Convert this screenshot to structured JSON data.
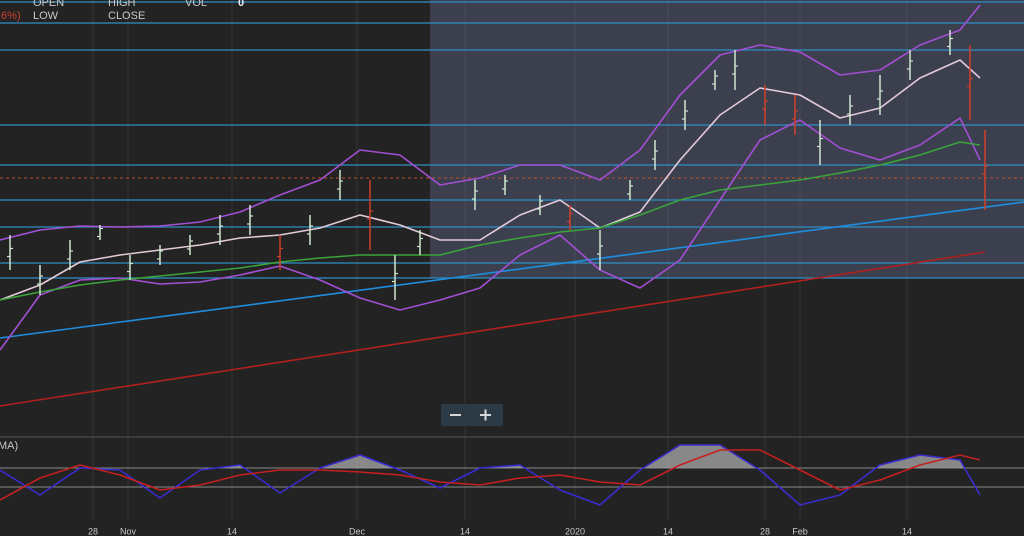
{
  "header": {
    "open": "OPEN",
    "high": "HIGH",
    "vol": "VOL",
    "vol_value": "0",
    "change": ".6%)",
    "low": "LOW",
    "close": "CLOSE"
  },
  "chart_data": [
    {
      "type": "line",
      "xlim": [
        0,
        1024
      ],
      "ylim": [
        0,
        430
      ],
      "xticks": [
        {
          "value": 93,
          "label": "28"
        },
        {
          "value": 128,
          "label": "Nov"
        },
        {
          "value": 232,
          "label": "14"
        },
        {
          "value": 357,
          "label": "Dec"
        },
        {
          "value": 465,
          "label": "14"
        },
        {
          "value": 575,
          "label": "2020"
        },
        {
          "value": 668,
          "label": "14"
        },
        {
          "value": 765,
          "label": "28"
        },
        {
          "value": 800,
          "label": "Feb"
        },
        {
          "value": 907,
          "label": "14"
        }
      ],
      "hlines": [
        428,
        407,
        380,
        305,
        265,
        230,
        203,
        167,
        152
      ],
      "hline_color": "#2f8fc4",
      "price_line": 252,
      "price_line_color": "#c0502a",
      "x": [
        0,
        40,
        80,
        120,
        160,
        200,
        240,
        280,
        320,
        360,
        400,
        440,
        480,
        520,
        560,
        600,
        640,
        680,
        720,
        760,
        800,
        840,
        880,
        920,
        960,
        980
      ],
      "series": [
        {
          "color": "#a34fd4",
          "values": [
            190,
            200,
            204,
            203,
            204,
            208,
            218,
            235,
            250,
            280,
            275,
            245,
            252,
            265,
            265,
            250,
            280,
            335,
            375,
            385,
            378,
            355,
            360,
            385,
            400,
            425
          ]
        },
        {
          "color": "#a34fd4",
          "values": [
            80,
            135,
            150,
            152,
            146,
            148,
            155,
            164,
            150,
            132,
            120,
            130,
            142,
            175,
            195,
            160,
            142,
            170,
            230,
            290,
            310,
            282,
            270,
            285,
            312,
            270
          ]
        },
        {
          "color": "#e2cad8",
          "values": [
            130,
            145,
            168,
            175,
            180,
            185,
            192,
            195,
            202,
            215,
            205,
            190,
            190,
            215,
            230,
            202,
            218,
            270,
            315,
            342,
            335,
            312,
            322,
            352,
            370,
            352
          ]
        },
        {
          "color": "#3aa43a",
          "values": [
            130,
            138,
            145,
            150,
            154,
            158,
            162,
            168,
            172,
            175,
            175,
            175,
            185,
            192,
            198,
            202,
            215,
            230,
            240,
            245,
            250,
            257,
            265,
            275,
            288,
            285
          ]
        }
      ],
      "trendlines": [
        {
          "color": "#1e8ee0",
          "x": [
            0,
            1024
          ],
          "values": [
            92,
            228
          ]
        },
        {
          "color": "#b0201e",
          "x": [
            0,
            985
          ],
          "values": [
            24,
            178
          ]
        }
      ],
      "up_bars": {
        "color": "#cfe6cf",
        "x": [
          10,
          40,
          70,
          100,
          130,
          160,
          190,
          220,
          250,
          310,
          340,
          395,
          420,
          475,
          505,
          540,
          600,
          630,
          655,
          685,
          715,
          735,
          820,
          850,
          880,
          910,
          950
        ],
        "high": [
          195,
          165,
          190,
          205,
          175,
          185,
          195,
          215,
          225,
          215,
          260,
          175,
          200,
          250,
          255,
          235,
          200,
          250,
          290,
          330,
          360,
          380,
          310,
          335,
          355,
          380,
          400
        ],
        "low": [
          160,
          135,
          160,
          190,
          150,
          165,
          175,
          185,
          195,
          185,
          230,
          130,
          175,
          220,
          235,
          215,
          160,
          230,
          260,
          300,
          340,
          340,
          265,
          305,
          315,
          350,
          375
        ]
      },
      "down_bars": {
        "color": "#d0402a",
        "x": [
          280,
          370,
          570,
          765,
          795,
          970,
          985
        ],
        "high": [
          195,
          250,
          225,
          345,
          335,
          385,
          300
        ],
        "low": [
          160,
          180,
          200,
          305,
          295,
          310,
          220
        ]
      }
    },
    {
      "type": "oscillator",
      "label": "MA)",
      "xlim": [
        0,
        1024
      ],
      "ylim": [
        0,
        75
      ],
      "levels": [
        47,
        28
      ],
      "fill_color": "#9a9a9a",
      "x": [
        0,
        40,
        80,
        120,
        160,
        200,
        240,
        280,
        320,
        360,
        400,
        440,
        480,
        520,
        560,
        600,
        640,
        680,
        720,
        760,
        800,
        840,
        880,
        920,
        960,
        980
      ],
      "series": [
        {
          "color": "#3a2ccf",
          "values": [
            45,
            20,
            47,
            45,
            17,
            45,
            50,
            22,
            47,
            60,
            45,
            27,
            47,
            50,
            25,
            10,
            45,
            70,
            70,
            45,
            10,
            20,
            50,
            60,
            55,
            20
          ]
        },
        {
          "color": "#c42020",
          "values": [
            15,
            37,
            50,
            40,
            25,
            30,
            40,
            45,
            45,
            43,
            40,
            33,
            30,
            37,
            40,
            33,
            30,
            50,
            65,
            65,
            45,
            25,
            35,
            50,
            60,
            55
          ]
        }
      ]
    }
  ]
}
